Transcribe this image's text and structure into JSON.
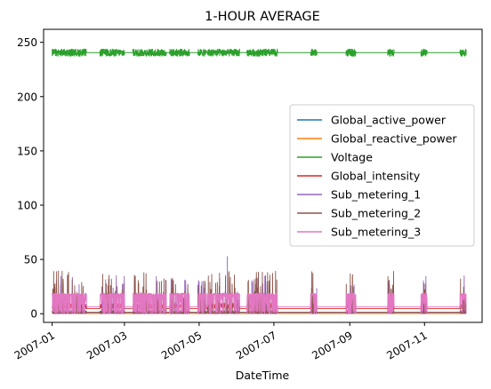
{
  "chart_data": {
    "type": "line",
    "title": "1-HOUR AVERAGE",
    "xlabel": "DateTime",
    "ylabel": "",
    "x_ticks": [
      "2007-01",
      "2007-03",
      "2007-05",
      "2007-07",
      "2007-09",
      "2007-11"
    ],
    "y_ticks": [
      "0",
      "50",
      "100",
      "150",
      "200",
      "250"
    ],
    "xlim": [
      "2006-12-25",
      "2007-12-18"
    ],
    "ylim": [
      -8,
      262
    ],
    "grid": false,
    "legend_position": "center-right",
    "active_periods": [
      [
        "2007-01-01",
        "2007-01-28"
      ],
      [
        "2007-02-09",
        "2007-02-28"
      ],
      [
        "2007-03-08",
        "2007-04-03"
      ],
      [
        "2007-04-07",
        "2007-04-22"
      ],
      [
        "2007-04-30",
        "2007-05-06"
      ],
      [
        "2007-05-08",
        "2007-06-02"
      ],
      [
        "2007-06-09",
        "2007-07-03"
      ],
      [
        "2007-07-31",
        "2007-08-04"
      ],
      [
        "2007-08-29",
        "2007-09-05"
      ],
      [
        "2007-10-02",
        "2007-10-06"
      ],
      [
        "2007-10-29",
        "2007-11-02"
      ],
      [
        "2007-11-30",
        "2007-12-04"
      ]
    ],
    "series": [
      {
        "name": "Global_active_power",
        "color": "#1f77b4",
        "baseline": 1.1,
        "amplitude": 1.5
      },
      {
        "name": "Global_reactive_power",
        "color": "#ff7f0e",
        "baseline": 0.1,
        "amplitude": 0.2
      },
      {
        "name": "Voltage",
        "color": "#2ca02c",
        "baseline": 240.5,
        "amplitude": 5.5
      },
      {
        "name": "Global_intensity",
        "color": "#d62728",
        "baseline": 4.6,
        "amplitude": 5
      },
      {
        "name": "Sub_metering_1",
        "color": "#9467bd",
        "baseline": 1.1,
        "amplitude": 38,
        "peak": 53
      },
      {
        "name": "Sub_metering_2",
        "color": "#8c564b",
        "baseline": 1.3,
        "amplitude": 40
      },
      {
        "name": "Sub_metering_3",
        "color": "#e377c2",
        "baseline": 6.4,
        "amplitude": 18
      }
    ]
  }
}
